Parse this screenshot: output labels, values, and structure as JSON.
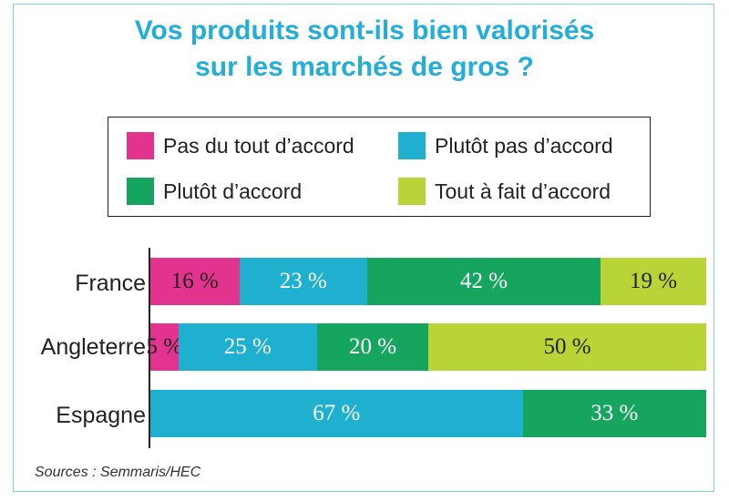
{
  "chart_data": {
    "type": "bar",
    "orientation": "horizontal",
    "stacked": true,
    "title": "Vos produits sont-ils bien valorisés sur les marchés de gros ?",
    "title_lines": [
      "Vos produits sont-ils bien valorisés",
      "sur les marchés de gros ?"
    ],
    "categories": [
      "France",
      "Angleterre",
      "Espagne"
    ],
    "series": [
      {
        "name": "Pas du tout d’accord",
        "color": "#e2338f",
        "values": [
          16,
          5,
          0
        ],
        "labels": [
          "16 %",
          "5 %",
          ""
        ]
      },
      {
        "name": "Plutôt pas d’accord",
        "color": "#1fb0cf",
        "values": [
          23,
          25,
          67
        ],
        "labels": [
          "23 %",
          "25 %",
          "67 %"
        ]
      },
      {
        "name": "Plutôt d’accord",
        "color": "#15a55f",
        "values": [
          42,
          20,
          33
        ],
        "labels": [
          "42 %",
          "20 %",
          "33 %"
        ]
      },
      {
        "name": "Tout à fait d’accord",
        "color": "#b8d437",
        "values": [
          19,
          50,
          0
        ],
        "labels": [
          "19 %",
          "50 %",
          ""
        ]
      }
    ],
    "label_colors": [
      "#222222",
      "#ffffff",
      "#ffffff",
      "#222222"
    ],
    "xlim": [
      0,
      100
    ],
    "legend_placement": "top",
    "grid": false
  },
  "source": "Sources : Semmaris/HEC"
}
